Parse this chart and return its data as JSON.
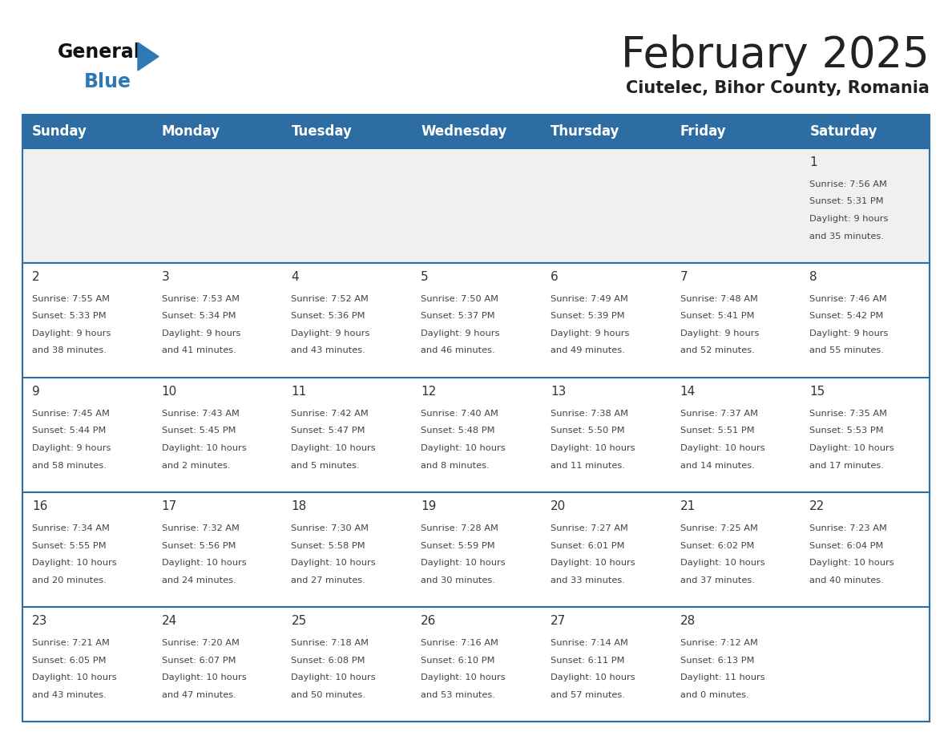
{
  "title": "February 2025",
  "subtitle": "Ciutelec, Bihor County, Romania",
  "days_of_week": [
    "Sunday",
    "Monday",
    "Tuesday",
    "Wednesday",
    "Thursday",
    "Friday",
    "Saturday"
  ],
  "header_bg": "#2E6DA4",
  "header_text": "#FFFFFF",
  "cell_bg_light": "#FFFFFF",
  "cell_bg_gray": "#F0F0F0",
  "cell_border": "#2E6DA4",
  "day_number_color": "#333333",
  "text_color": "#444444",
  "title_color": "#222222",
  "subtitle_color": "#222222",
  "logo_general_color": "#111111",
  "logo_blue_color": "#2E79B5",
  "calendar_data": [
    {
      "day": 1,
      "weekday": 6,
      "sunrise": "7:56 AM",
      "sunset": "5:31 PM",
      "daylight": "9 hours and 35 minutes"
    },
    {
      "day": 2,
      "weekday": 0,
      "sunrise": "7:55 AM",
      "sunset": "5:33 PM",
      "daylight": "9 hours and 38 minutes"
    },
    {
      "day": 3,
      "weekday": 1,
      "sunrise": "7:53 AM",
      "sunset": "5:34 PM",
      "daylight": "9 hours and 41 minutes"
    },
    {
      "day": 4,
      "weekday": 2,
      "sunrise": "7:52 AM",
      "sunset": "5:36 PM",
      "daylight": "9 hours and 43 minutes"
    },
    {
      "day": 5,
      "weekday": 3,
      "sunrise": "7:50 AM",
      "sunset": "5:37 PM",
      "daylight": "9 hours and 46 minutes"
    },
    {
      "day": 6,
      "weekday": 4,
      "sunrise": "7:49 AM",
      "sunset": "5:39 PM",
      "daylight": "9 hours and 49 minutes"
    },
    {
      "day": 7,
      "weekday": 5,
      "sunrise": "7:48 AM",
      "sunset": "5:41 PM",
      "daylight": "9 hours and 52 minutes"
    },
    {
      "day": 8,
      "weekday": 6,
      "sunrise": "7:46 AM",
      "sunset": "5:42 PM",
      "daylight": "9 hours and 55 minutes"
    },
    {
      "day": 9,
      "weekday": 0,
      "sunrise": "7:45 AM",
      "sunset": "5:44 PM",
      "daylight": "9 hours and 58 minutes"
    },
    {
      "day": 10,
      "weekday": 1,
      "sunrise": "7:43 AM",
      "sunset": "5:45 PM",
      "daylight": "10 hours and 2 minutes"
    },
    {
      "day": 11,
      "weekday": 2,
      "sunrise": "7:42 AM",
      "sunset": "5:47 PM",
      "daylight": "10 hours and 5 minutes"
    },
    {
      "day": 12,
      "weekday": 3,
      "sunrise": "7:40 AM",
      "sunset": "5:48 PM",
      "daylight": "10 hours and 8 minutes"
    },
    {
      "day": 13,
      "weekday": 4,
      "sunrise": "7:38 AM",
      "sunset": "5:50 PM",
      "daylight": "10 hours and 11 minutes"
    },
    {
      "day": 14,
      "weekday": 5,
      "sunrise": "7:37 AM",
      "sunset": "5:51 PM",
      "daylight": "10 hours and 14 minutes"
    },
    {
      "day": 15,
      "weekday": 6,
      "sunrise": "7:35 AM",
      "sunset": "5:53 PM",
      "daylight": "10 hours and 17 minutes"
    },
    {
      "day": 16,
      "weekday": 0,
      "sunrise": "7:34 AM",
      "sunset": "5:55 PM",
      "daylight": "10 hours and 20 minutes"
    },
    {
      "day": 17,
      "weekday": 1,
      "sunrise": "7:32 AM",
      "sunset": "5:56 PM",
      "daylight": "10 hours and 24 minutes"
    },
    {
      "day": 18,
      "weekday": 2,
      "sunrise": "7:30 AM",
      "sunset": "5:58 PM",
      "daylight": "10 hours and 27 minutes"
    },
    {
      "day": 19,
      "weekday": 3,
      "sunrise": "7:28 AM",
      "sunset": "5:59 PM",
      "daylight": "10 hours and 30 minutes"
    },
    {
      "day": 20,
      "weekday": 4,
      "sunrise": "7:27 AM",
      "sunset": "6:01 PM",
      "daylight": "10 hours and 33 minutes"
    },
    {
      "day": 21,
      "weekday": 5,
      "sunrise": "7:25 AM",
      "sunset": "6:02 PM",
      "daylight": "10 hours and 37 minutes"
    },
    {
      "day": 22,
      "weekday": 6,
      "sunrise": "7:23 AM",
      "sunset": "6:04 PM",
      "daylight": "10 hours and 40 minutes"
    },
    {
      "day": 23,
      "weekday": 0,
      "sunrise": "7:21 AM",
      "sunset": "6:05 PM",
      "daylight": "10 hours and 43 minutes"
    },
    {
      "day": 24,
      "weekday": 1,
      "sunrise": "7:20 AM",
      "sunset": "6:07 PM",
      "daylight": "10 hours and 47 minutes"
    },
    {
      "day": 25,
      "weekday": 2,
      "sunrise": "7:18 AM",
      "sunset": "6:08 PM",
      "daylight": "10 hours and 50 minutes"
    },
    {
      "day": 26,
      "weekday": 3,
      "sunrise": "7:16 AM",
      "sunset": "6:10 PM",
      "daylight": "10 hours and 53 minutes"
    },
    {
      "day": 27,
      "weekday": 4,
      "sunrise": "7:14 AM",
      "sunset": "6:11 PM",
      "daylight": "10 hours and 57 minutes"
    },
    {
      "day": 28,
      "weekday": 5,
      "sunrise": "7:12 AM",
      "sunset": "6:13 PM",
      "daylight": "11 hours and 0 minutes"
    }
  ]
}
